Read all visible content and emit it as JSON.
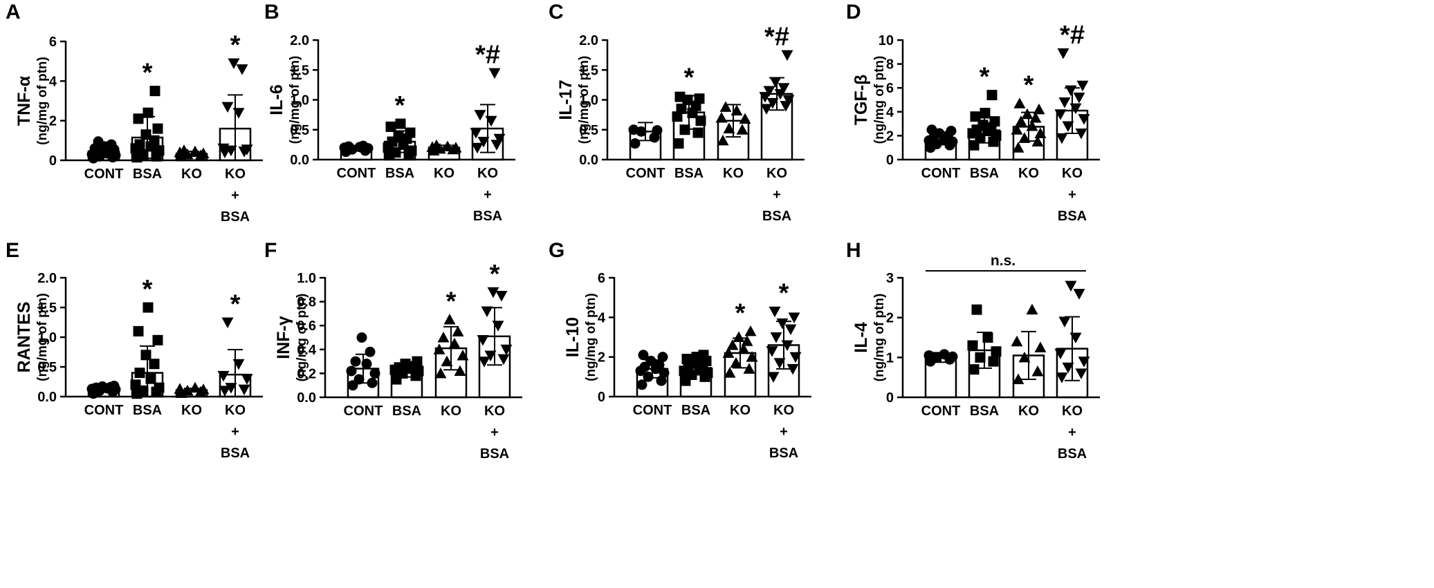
{
  "chart_data": [
    {
      "panel": "A",
      "type": "bar",
      "ylabel": "TNF-α",
      "ylabel_units": "(ng/mg of ptn)",
      "ylim": [
        0,
        6
      ],
      "yticks": [
        "0",
        "2",
        "4",
        "6"
      ],
      "categories": [
        [
          "CONT"
        ],
        [
          "BSA"
        ],
        [
          "KO"
        ],
        [
          "KO",
          "+",
          "BSA"
        ]
      ],
      "markers": [
        "circle",
        "square",
        "triangle",
        "triangle-down"
      ],
      "means": [
        0.45,
        1.15,
        0.33,
        1.6
      ],
      "sd": [
        0.3,
        1.05,
        0.12,
        1.7
      ],
      "points": [
        [
          0.1,
          0.15,
          0.2,
          0.25,
          0.3,
          0.35,
          0.4,
          0.45,
          0.5,
          0.55,
          0.6,
          0.7,
          0.8,
          0.95
        ],
        [
          0.15,
          0.2,
          0.3,
          0.5,
          0.6,
          0.7,
          0.8,
          1.0,
          1.3,
          1.6,
          2.1,
          2.4,
          3.5
        ],
        [
          0.2,
          0.25,
          0.3,
          0.35,
          0.4,
          0.45,
          0.5
        ],
        [
          0.4,
          0.45,
          0.5,
          0.55,
          0.6,
          2.4,
          2.7,
          4.6,
          4.9
        ]
      ],
      "significance": [
        "",
        "*",
        "",
        "*"
      ]
    },
    {
      "panel": "B",
      "type": "bar",
      "ylabel": "IL-6",
      "ylabel_units": "(ng/mg of ptn)",
      "ylim": [
        0,
        2
      ],
      "yticks": [
        "0.0",
        "0.5",
        "1.0",
        "1.5",
        "2.0"
      ],
      "categories": [
        [
          "CONT"
        ],
        [
          "BSA"
        ],
        [
          "KO"
        ],
        [
          "KO",
          "+",
          "BSA"
        ]
      ],
      "markers": [
        "circle",
        "square",
        "triangle",
        "triangle-down"
      ],
      "means": [
        0.19,
        0.3,
        0.2,
        0.52
      ],
      "sd": [
        0.04,
        0.18,
        0.04,
        0.4
      ],
      "points": [
        [
          0.13,
          0.15,
          0.17,
          0.19,
          0.2,
          0.21,
          0.22,
          0.23
        ],
        [
          0.08,
          0.1,
          0.12,
          0.15,
          0.2,
          0.25,
          0.3,
          0.35,
          0.4,
          0.45,
          0.55,
          0.6
        ],
        [
          0.15,
          0.17,
          0.18,
          0.2,
          0.21,
          0.22,
          0.24
        ],
        [
          0.2,
          0.25,
          0.3,
          0.35,
          0.45,
          0.65,
          0.75,
          1.45
        ]
      ],
      "significance": [
        "",
        "*",
        "",
        "*#"
      ]
    },
    {
      "panel": "C",
      "type": "bar",
      "ylabel": "IL-17",
      "ylabel_units": "(ng/mg of ptn)",
      "ylim": [
        0,
        2
      ],
      "yticks": [
        "0.0",
        "0.5",
        "1.0",
        "1.5",
        "2.0"
      ],
      "categories": [
        [
          "CONT"
        ],
        [
          "BSA"
        ],
        [
          "KO"
        ],
        [
          "KO",
          "+",
          "BSA"
        ]
      ],
      "markers": [
        "circle",
        "square",
        "triangle",
        "triangle-down"
      ],
      "means": [
        0.47,
        0.79,
        0.65,
        1.1
      ],
      "sd": [
        0.15,
        0.28,
        0.27,
        0.27
      ],
      "points": [
        [
          0.27,
          0.37,
          0.47,
          0.49,
          0.5
        ],
        [
          0.27,
          0.45,
          0.5,
          0.65,
          0.72,
          0.78,
          0.85,
          0.9,
          1.0,
          1.02,
          1.05
        ],
        [
          0.32,
          0.5,
          0.52,
          0.68,
          0.7,
          0.82,
          0.88
        ],
        [
          0.85,
          0.9,
          0.95,
          1.0,
          1.05,
          1.1,
          1.15,
          1.2,
          1.3,
          1.75
        ]
      ],
      "significance": [
        "",
        "*",
        "",
        "*#"
      ]
    },
    {
      "panel": "D",
      "type": "bar",
      "ylabel": "TGF-β",
      "ylabel_units": "(ng/mg of ptn)",
      "ylim": [
        0,
        10
      ],
      "yticks": [
        "0",
        "2",
        "4",
        "6",
        "8",
        "10"
      ],
      "categories": [
        [
          "CONT"
        ],
        [
          "BSA"
        ],
        [
          "KO"
        ],
        [
          "KO",
          "+",
          "BSA"
        ]
      ],
      "markers": [
        "circle",
        "square",
        "triangle",
        "triangle-down"
      ],
      "means": [
        1.65,
        2.45,
        2.75,
        4.1
      ],
      "sd": [
        0.4,
        1.05,
        1.2,
        1.9
      ],
      "points": [
        [
          1.0,
          1.2,
          1.3,
          1.5,
          1.6,
          1.7,
          1.8,
          2.0,
          2.2,
          2.4,
          2.5
        ],
        [
          1.2,
          1.5,
          1.8,
          2.0,
          2.2,
          2.4,
          2.5,
          2.7,
          2.9,
          3.2,
          3.6,
          3.9,
          5.4
        ],
        [
          1.0,
          1.5,
          1.8,
          2.2,
          2.5,
          2.8,
          3.2,
          3.5,
          3.8,
          4.2,
          4.7
        ],
        [
          1.8,
          2.2,
          2.8,
          3.4,
          3.8,
          4.3,
          4.8,
          5.2,
          5.8,
          6.2,
          8.9
        ]
      ],
      "significance": [
        "",
        "*",
        "*",
        "*#"
      ]
    },
    {
      "panel": "E",
      "type": "bar",
      "ylabel": "RANTES",
      "ylabel_units": "(ng/mg of ptn)",
      "ylim": [
        0,
        2
      ],
      "yticks": [
        "0.0",
        "0.5",
        "1.0",
        "1.5",
        "2.0"
      ],
      "categories": [
        [
          "CONT"
        ],
        [
          "BSA"
        ],
        [
          "KO"
        ],
        [
          "KO",
          "+",
          "BSA"
        ]
      ],
      "markers": [
        "circle",
        "square",
        "triangle",
        "triangle-down"
      ],
      "means": [
        0.13,
        0.4,
        0.11,
        0.37
      ],
      "sd": [
        0.05,
        0.45,
        0.03,
        0.42
      ],
      "points": [
        [
          0.05,
          0.08,
          0.1,
          0.12,
          0.13,
          0.14,
          0.15,
          0.16,
          0.17,
          0.18
        ],
        [
          0.05,
          0.08,
          0.1,
          0.15,
          0.2,
          0.3,
          0.4,
          0.55,
          0.7,
          0.95,
          1.1,
          1.5
        ],
        [
          0.06,
          0.08,
          0.1,
          0.12,
          0.13,
          0.15
        ],
        [
          0.1,
          0.12,
          0.15,
          0.3,
          0.35,
          0.55,
          1.25
        ]
      ],
      "significance": [
        "",
        "*",
        "",
        "*"
      ]
    },
    {
      "panel": "F",
      "type": "bar",
      "ylabel": "INF-γ",
      "ylabel_units": "(ng/mg of ptn)",
      "ylim": [
        0,
        1
      ],
      "yticks": [
        "0.0",
        "0.2",
        "0.4",
        "0.6",
        "0.8",
        "1.0"
      ],
      "categories": [
        [
          "CONT"
        ],
        [
          "BSA"
        ],
        [
          "KO"
        ],
        [
          "KO",
          "+",
          "BSA"
        ]
      ],
      "markers": [
        "circle",
        "square",
        "triangle",
        "triangle-down"
      ],
      "means": [
        0.24,
        0.22,
        0.41,
        0.51
      ],
      "sd": [
        0.12,
        0.05,
        0.18,
        0.24
      ],
      "points": [
        [
          0.1,
          0.12,
          0.15,
          0.2,
          0.22,
          0.28,
          0.3,
          0.38,
          0.5
        ],
        [
          0.15,
          0.18,
          0.2,
          0.22,
          0.23,
          0.24,
          0.25,
          0.26,
          0.28,
          0.3
        ],
        [
          0.2,
          0.22,
          0.3,
          0.35,
          0.4,
          0.45,
          0.5,
          0.55,
          0.65
        ],
        [
          0.3,
          0.32,
          0.35,
          0.4,
          0.48,
          0.6,
          0.72,
          0.85,
          0.88
        ]
      ],
      "significance": [
        "",
        "",
        "*",
        "*"
      ]
    },
    {
      "panel": "G",
      "type": "bar",
      "ylabel": "IL-10",
      "ylabel_units": "(ng/mg of ptn)",
      "ylim": [
        0,
        6
      ],
      "yticks": [
        "0",
        "2",
        "4",
        "6"
      ],
      "categories": [
        [
          "CONT"
        ],
        [
          "BSA"
        ],
        [
          "KO"
        ],
        [
          "KO",
          "+",
          "BSA"
        ]
      ],
      "markers": [
        "circle",
        "square",
        "triangle",
        "triangle-down"
      ],
      "means": [
        1.4,
        1.45,
        2.2,
        2.6
      ],
      "sd": [
        0.45,
        0.35,
        0.75,
        1.2
      ],
      "points": [
        [
          0.6,
          0.8,
          1.0,
          1.2,
          1.3,
          1.4,
          1.5,
          1.6,
          1.8,
          2.0,
          2.1
        ],
        [
          0.8,
          1.0,
          1.1,
          1.2,
          1.3,
          1.4,
          1.5,
          1.6,
          1.7,
          1.8,
          1.9,
          2.0,
          2.1
        ],
        [
          1.2,
          1.4,
          1.7,
          2.0,
          2.2,
          2.4,
          2.6,
          2.8,
          3.0,
          3.3
        ],
        [
          1.0,
          1.4,
          1.7,
          2.0,
          2.3,
          2.6,
          3.0,
          3.4,
          3.7,
          4.0,
          4.3
        ]
      ],
      "significance": [
        "",
        "",
        "*",
        "*"
      ]
    },
    {
      "panel": "H",
      "type": "bar",
      "ylabel": "IL-4",
      "ylabel_units": "(ng/mg of ptn)",
      "ylim": [
        0,
        3
      ],
      "yticks": [
        "0",
        "1",
        "2",
        "3"
      ],
      "categories": [
        [
          "CONT"
        ],
        [
          "BSA"
        ],
        [
          "KO"
        ],
        [
          "KO",
          "+",
          "BSA"
        ]
      ],
      "markers": [
        "circle",
        "square",
        "triangle",
        "triangle-down"
      ],
      "means": [
        1.0,
        1.18,
        1.05,
        1.22
      ],
      "sd": [
        0.12,
        0.45,
        0.6,
        0.8
      ],
      "points": [
        [
          0.9,
          0.95,
          1.0,
          1.02,
          1.05,
          1.08
        ],
        [
          0.7,
          0.9,
          1.0,
          1.15,
          1.3,
          1.5,
          2.2
        ],
        [
          0.45,
          0.65,
          1.0,
          1.25,
          1.4,
          2.2
        ],
        [
          0.5,
          0.6,
          0.75,
          0.9,
          1.1,
          1.5,
          1.9,
          2.6,
          2.8
        ]
      ],
      "significance": [
        "",
        "",
        "",
        ""
      ],
      "bracket_label": "n.s."
    }
  ]
}
